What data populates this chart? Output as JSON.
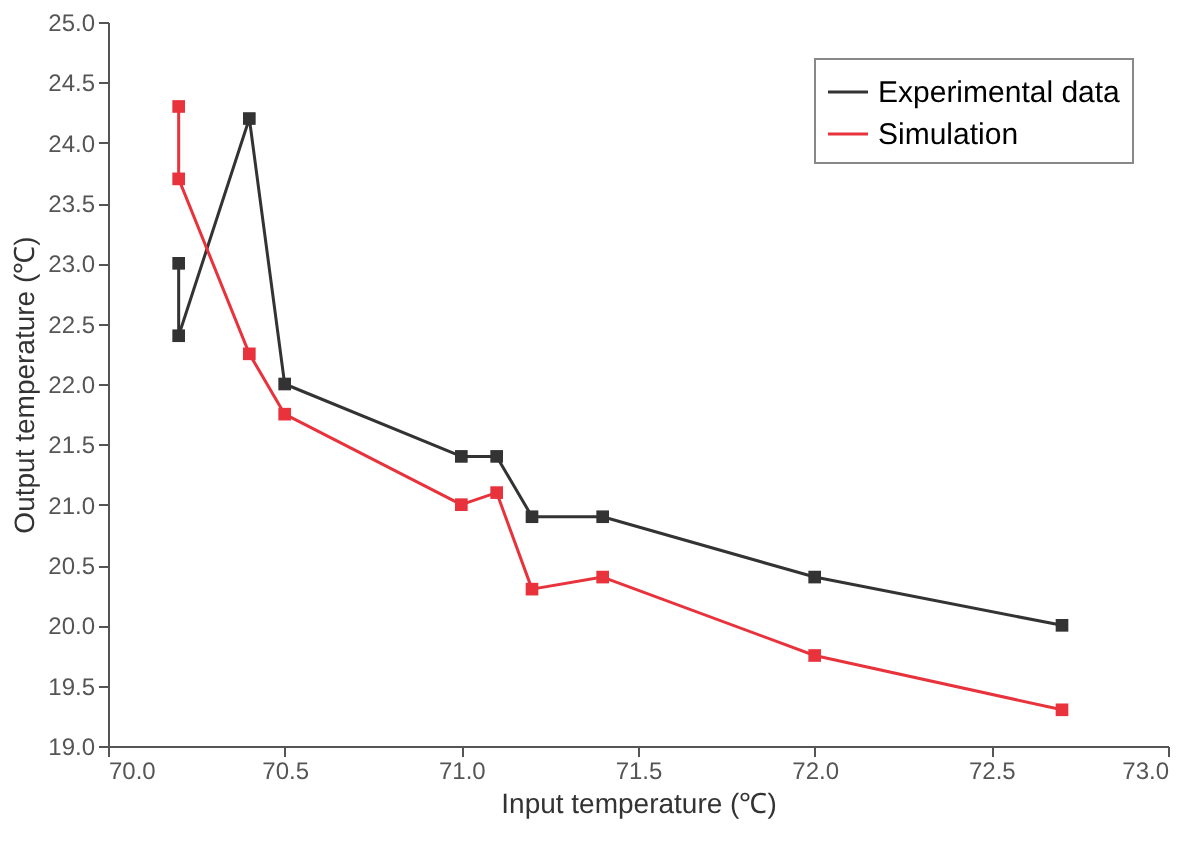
{
  "chart_data": {
    "type": "line",
    "xlabel": "Input temperature (℃)",
    "ylabel": "Output temperature (℃)",
    "xlim": [
      70.0,
      73.0
    ],
    "ylim": [
      19.0,
      25.0
    ],
    "xticks": [
      {
        "value": 70,
        "label": "70.0"
      },
      {
        "value": 70.5,
        "label": "70.5"
      },
      {
        "value": 71,
        "label": "71.0"
      },
      {
        "value": 71.5,
        "label": "71.5"
      },
      {
        "value": 72,
        "label": "72.0"
      },
      {
        "value": 72.5,
        "label": "72.5"
      },
      {
        "value": 73,
        "label": "73.0"
      }
    ],
    "yticks": [
      {
        "value": 19,
        "label": "19.0"
      },
      {
        "value": 19.5,
        "label": "19.5"
      },
      {
        "value": 20,
        "label": "20.0"
      },
      {
        "value": 20.5,
        "label": "20.5"
      },
      {
        "value": 21,
        "label": "21.0"
      },
      {
        "value": 21.5,
        "label": "21.5"
      },
      {
        "value": 22,
        "label": "22.0"
      },
      {
        "value": 22.5,
        "label": "22.5"
      },
      {
        "value": 23,
        "label": "23.0"
      },
      {
        "value": 23.5,
        "label": "23.5"
      },
      {
        "value": 24,
        "label": "24.0"
      },
      {
        "value": 24.5,
        "label": "24.5"
      },
      {
        "value": 25,
        "label": "25.0"
      }
    ],
    "grid": false,
    "legend": "top right",
    "marker": "square",
    "line_style": "solid",
    "series": [
      {
        "name": "Experimental data",
        "color": "#333333",
        "x": [
          70.2,
          70.2,
          70.4,
          70.5,
          71.0,
          71.1,
          71.2,
          71.4,
          72.0,
          72.7
        ],
        "values": [
          23.0,
          22.4,
          24.2,
          22.0,
          21.4,
          21.4,
          20.9,
          20.9,
          20.4,
          20.0
        ]
      },
      {
        "name": "Simulation",
        "color": "#e8323c",
        "x": [
          70.2,
          70.2,
          70.4,
          70.5,
          71.0,
          71.1,
          71.2,
          71.4,
          72.0,
          72.7
        ],
        "values": [
          24.3,
          23.7,
          22.25,
          21.75,
          21.0,
          21.1,
          20.3,
          20.4,
          19.75,
          19.3
        ]
      }
    ]
  }
}
